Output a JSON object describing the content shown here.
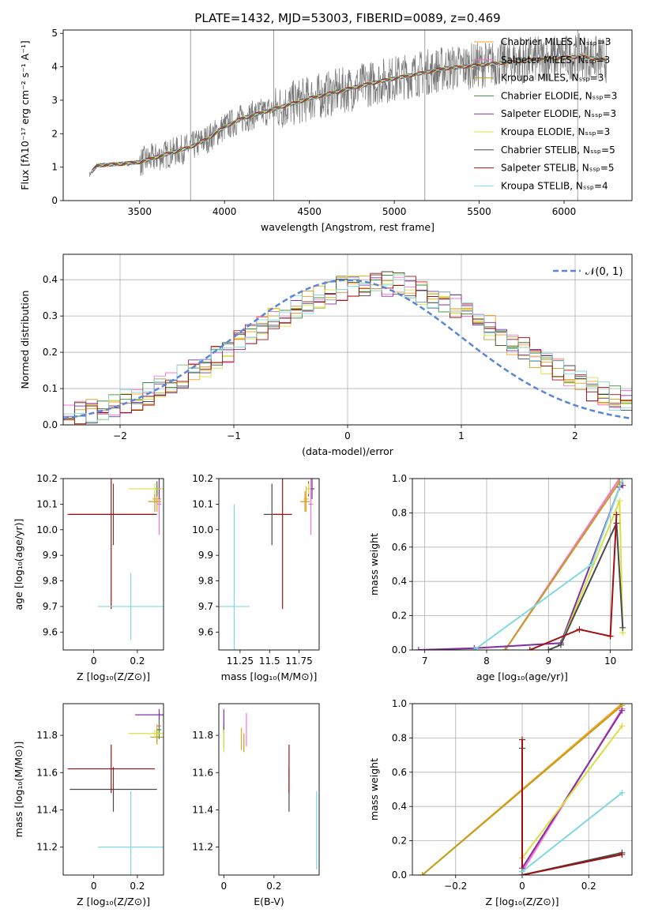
{
  "colors": [
    "#ff9f20",
    "#ff6fd2",
    "#c0a020",
    "#3a8a3a",
    "#8030a0",
    "#d8e040",
    "#4a4a4a",
    "#a01010",
    "#80d8e0"
  ],
  "chart_data": [
    {
      "id": "spectrum",
      "type": "line",
      "title": "PLATE=1432, MJD=53003, FIBERID=0089, z=0.469",
      "xlabel": "wavelength [Angstrom, rest frame]",
      "ylabel": "Flux [fλ10⁻¹⁷ erg cm⁻² s⁻¹ A⁻¹]",
      "xlim": [
        3050,
        6400
      ],
      "ylim": [
        0,
        5.1
      ],
      "xticks": [
        3500,
        4000,
        4500,
        5000,
        5500,
        6000
      ],
      "yticks": [
        0,
        1,
        2,
        3,
        4,
        5
      ],
      "grid": false,
      "legend": "top-right",
      "legend_entries": [
        "Chabrier MILES, Nₛₛₚ=3",
        "Salpeter MILES, Nₛₛₚ=3",
        "Kroupa MILES, Nₛₛₚ=3",
        "Chabrier ELODIE, Nₛₛₚ=3",
        "Salpeter ELODIE, Nₛₛₚ=3",
        "Kroupa ELODIE, Nₛₛₚ=3",
        "Chabrier STELIB, Nₛₛₚ=5",
        "Salpeter STELIB, Nₛₛₚ=5",
        "Kroupa STELIB, Nₛₛₚ=4"
      ],
      "model_curve": {
        "x": [
          3200,
          3250,
          3400,
          3500,
          3600,
          3800,
          3900,
          4000,
          4100,
          4300,
          4500,
          4700,
          4900,
          5100,
          5300,
          5500,
          5700,
          5900,
          6100,
          6250
        ],
        "y": [
          0.75,
          1.05,
          1.1,
          1.15,
          1.3,
          1.6,
          1.85,
          2.2,
          2.45,
          2.75,
          3.05,
          3.3,
          3.55,
          3.75,
          3.95,
          4.05,
          4.15,
          4.25,
          4.3,
          4.2
        ]
      }
    },
    {
      "id": "residuals",
      "type": "line",
      "xlabel": "(data-model)/error",
      "ylabel": "Normed distribution",
      "xlim": [
        -2.5,
        2.5
      ],
      "ylim": [
        0,
        0.47
      ],
      "xticks": [
        -2,
        -1,
        0,
        1,
        2
      ],
      "yticks": [
        0.0,
        0.1,
        0.2,
        0.3,
        0.4
      ],
      "grid": true,
      "legend": "top-right",
      "legend_entries": [
        "𝒩(0, 1)"
      ],
      "gaussian": {
        "mu": 0,
        "sigma": 1
      }
    },
    {
      "id": "age-vs-Z",
      "type": "scatter",
      "xlabel": "Z [log₁₀(Z/Z⊙)]",
      "ylabel": "age  [log₁₀(age/yr)]",
      "xlim": [
        -0.14,
        0.32
      ],
      "ylim": [
        9.53,
        10.2
      ],
      "xticks": [
        0.0,
        0.2
      ],
      "yticks": [
        9.6,
        9.7,
        9.8,
        9.9,
        10.0,
        10.1,
        10.2
      ],
      "grid": false,
      "points": [
        {
          "c": 0,
          "x": 0.29,
          "y": 10.12,
          "ex": 0.02,
          "ey": 0.05
        },
        {
          "c": 1,
          "x": 0.3,
          "y": 10.1,
          "ex": 0.01,
          "ey": 0.12
        },
        {
          "c": 2,
          "x": 0.28,
          "y": 10.11,
          "ex": 0.03,
          "ey": 0.04
        },
        {
          "c": 3,
          "x": 0.29,
          "y": 10.16,
          "ex": 0.01,
          "ey": 0.03
        },
        {
          "c": 4,
          "x": 0.3,
          "y": 10.16,
          "ex": 0.01,
          "ey": 0.04
        },
        {
          "c": 5,
          "x": 0.28,
          "y": 10.16,
          "ex": 0.12,
          "ey": 0.02
        },
        {
          "c": 6,
          "x": 0.09,
          "y": 10.06,
          "ex": 0.2,
          "ey": 0.12
        },
        {
          "c": 7,
          "x": 0.08,
          "y": 10.06,
          "ex": 0.2,
          "ey": 0.37
        },
        {
          "c": 8,
          "x": 0.17,
          "y": 9.7,
          "ex": 0.15,
          "ey": 0.13
        }
      ]
    },
    {
      "id": "age-vs-mass",
      "type": "scatter",
      "xlabel": "mass [log₁₀(M/M⊙)]",
      "ylabel": "",
      "xlim": [
        11.07,
        11.92
      ],
      "ylim": [
        9.53,
        10.2
      ],
      "xticks": [
        11.25,
        11.5,
        11.75
      ],
      "yticks": [
        9.6,
        9.7,
        9.8,
        9.9,
        10.0,
        10.1,
        10.2
      ],
      "grid": false,
      "points": [
        {
          "c": 0,
          "x": 11.81,
          "y": 10.12,
          "ex": 0.02,
          "ey": 0.05
        },
        {
          "c": 1,
          "x": 11.85,
          "y": 10.1,
          "ex": 0.02,
          "ey": 0.12
        },
        {
          "c": 2,
          "x": 11.8,
          "y": 10.11,
          "ex": 0.04,
          "ey": 0.04
        },
        {
          "c": 3,
          "x": 11.83,
          "y": 10.16,
          "ex": 0.01,
          "ey": 0.03
        },
        {
          "c": 4,
          "x": 11.86,
          "y": 10.16,
          "ex": 0.02,
          "ey": 0.04
        },
        {
          "c": 5,
          "x": 11.83,
          "y": 10.16,
          "ex": 0.02,
          "ey": 0.02
        },
        {
          "c": 6,
          "x": 11.52,
          "y": 10.06,
          "ex": 0.07,
          "ey": 0.12
        },
        {
          "c": 7,
          "x": 11.61,
          "y": 10.06,
          "ex": 0.08,
          "ey": 0.37
        },
        {
          "c": 8,
          "x": 11.2,
          "y": 9.7,
          "ex": 0.13,
          "ey": 0.4
        }
      ]
    },
    {
      "id": "weight-vs-age",
      "type": "line",
      "xlabel": "age  [log₁₀(age/yr)]",
      "ylabel": "mass weight",
      "xlim": [
        6.8,
        10.35
      ],
      "ylim": [
        0,
        1.0
      ],
      "xticks": [
        7,
        8,
        9,
        10
      ],
      "yticks": [
        0.0,
        0.2,
        0.4,
        0.6,
        0.8,
        1.0
      ],
      "grid": true,
      "series": [
        {
          "c": 0,
          "x": [
            8.3,
            10.15
          ],
          "y": [
            0.0,
            1.0
          ]
        },
        {
          "c": 1,
          "x": [
            8.3,
            10.15
          ],
          "y": [
            0.0,
            1.0
          ]
        },
        {
          "c": 2,
          "x": [
            8.3,
            10.15
          ],
          "y": [
            0.0,
            0.98
          ]
        },
        {
          "c": 4,
          "x": [
            6.9,
            7.8,
            9.2,
            10.15,
            10.2
          ],
          "y": [
            0.0,
            0.01,
            0.04,
            0.95,
            0.96
          ]
        },
        {
          "c": 5,
          "x": [
            9.2,
            10.15,
            10.2
          ],
          "y": [
            0.03,
            0.87,
            0.1
          ]
        },
        {
          "c": 6,
          "x": [
            9.0,
            9.2,
            10.1,
            10.2
          ],
          "y": [
            0.0,
            0.03,
            0.74,
            0.13
          ]
        },
        {
          "c": 7,
          "x": [
            8.7,
            9.5,
            10.0,
            10.1
          ],
          "y": [
            0.0,
            0.12,
            0.08,
            0.79
          ]
        },
        {
          "c": 8,
          "x": [
            7.8,
            9.7,
            10.2
          ],
          "y": [
            0.0,
            0.5,
            1.0
          ]
        }
      ]
    },
    {
      "id": "mass-vs-Z",
      "type": "scatter",
      "xlabel": "Z [log₁₀(Z/Z⊙)]",
      "ylabel": "mass [log₁₀(M/M⊙)]",
      "xlim": [
        -0.14,
        0.32
      ],
      "ylim": [
        11.05,
        11.97
      ],
      "xticks": [
        0.0,
        0.2
      ],
      "yticks": [
        11.2,
        11.4,
        11.6,
        11.8
      ],
      "grid": false,
      "points": [
        {
          "c": 0,
          "x": 0.29,
          "y": 11.81,
          "ex": 0.02,
          "ey": 0.05
        },
        {
          "c": 1,
          "x": 0.3,
          "y": 11.85,
          "ex": 0.01,
          "ey": 0.07
        },
        {
          "c": 2,
          "x": 0.29,
          "y": 11.79,
          "ex": 0.03,
          "ey": 0.04
        },
        {
          "c": 3,
          "x": 0.3,
          "y": 11.83,
          "ex": 0.01,
          "ey": 0.05
        },
        {
          "c": 4,
          "x": 0.3,
          "y": 11.91,
          "ex": 0.11,
          "ey": 0.03
        },
        {
          "c": 5,
          "x": 0.28,
          "y": 11.81,
          "ex": 0.12,
          "ey": 0.02
        },
        {
          "c": 6,
          "x": 0.09,
          "y": 11.51,
          "ex": 0.2,
          "ey": 0.12
        },
        {
          "c": 7,
          "x": 0.08,
          "y": 11.62,
          "ex": 0.2,
          "ey": 0.13
        },
        {
          "c": 8,
          "x": 0.17,
          "y": 11.2,
          "ex": 0.15,
          "ey": 0.3
        }
      ]
    },
    {
      "id": "mass-vs-ebv",
      "type": "scatter",
      "xlabel": "E(B-V)",
      "ylabel": "",
      "xlim": [
        -0.02,
        0.38
      ],
      "ylim": [
        11.05,
        11.97
      ],
      "xticks": [
        0.0,
        0.2
      ],
      "yticks": [
        11.2,
        11.4,
        11.6,
        11.8
      ],
      "grid": false,
      "points": [
        {
          "c": 0,
          "x": 0.07,
          "y": 11.78,
          "ex": 0,
          "ey": 0.06
        },
        {
          "c": 1,
          "x": 0.09,
          "y": 11.83,
          "ex": 0,
          "ey": 0.09
        },
        {
          "c": 2,
          "x": 0.08,
          "y": 11.76,
          "ex": 0,
          "ey": 0.05
        },
        {
          "c": 3,
          "x": 0.0,
          "y": 11.8,
          "ex": 0,
          "ey": 0.06
        },
        {
          "c": 4,
          "x": 0.0,
          "y": 11.88,
          "ex": 0,
          "ey": 0.06
        },
        {
          "c": 5,
          "x": 0.0,
          "y": 11.77,
          "ex": 0,
          "ey": 0.06
        },
        {
          "c": 6,
          "x": 0.26,
          "y": 11.51,
          "ex": 0,
          "ey": 0.12
        },
        {
          "c": 7,
          "x": 0.26,
          "y": 11.62,
          "ex": 0,
          "ey": 0.13
        },
        {
          "c": 8,
          "x": 0.37,
          "y": 11.29,
          "ex": 0,
          "ey": 0.21
        }
      ]
    },
    {
      "id": "weight-vs-Z",
      "type": "line",
      "xlabel": "Z [log₁₀(Z/Z⊙)]",
      "ylabel": "mass weight",
      "xlim": [
        -0.33,
        0.33
      ],
      "ylim": [
        0,
        1.0
      ],
      "xticks": [
        -0.2,
        0.0,
        0.2
      ],
      "yticks": [
        0.0,
        0.2,
        0.4,
        0.6,
        0.8,
        1.0
      ],
      "grid": true,
      "series": [
        {
          "c": 0,
          "x": [
            -0.3,
            0.3
          ],
          "y": [
            0.0,
            1.0
          ]
        },
        {
          "c": 1,
          "x": [
            0.0,
            0.3
          ],
          "y": [
            0.02,
            0.97
          ]
        },
        {
          "c": 2,
          "x": [
            -0.3,
            0.3
          ],
          "y": [
            0.0,
            0.99
          ]
        },
        {
          "c": 4,
          "x": [
            0.0,
            0.3
          ],
          "y": [
            0.04,
            0.96
          ]
        },
        {
          "c": 5,
          "x": [
            0.0,
            0.3
          ],
          "y": [
            0.1,
            0.87
          ]
        },
        {
          "c": 6,
          "x": [
            0.0,
            0.0,
            0.3
          ],
          "y": [
            0.74,
            0.0,
            0.13
          ]
        },
        {
          "c": 7,
          "x": [
            0.0,
            0.0,
            0.3
          ],
          "y": [
            0.79,
            0.0,
            0.12
          ]
        },
        {
          "c": 8,
          "x": [
            0.0,
            0.3
          ],
          "y": [
            0.02,
            0.48
          ]
        }
      ]
    }
  ]
}
